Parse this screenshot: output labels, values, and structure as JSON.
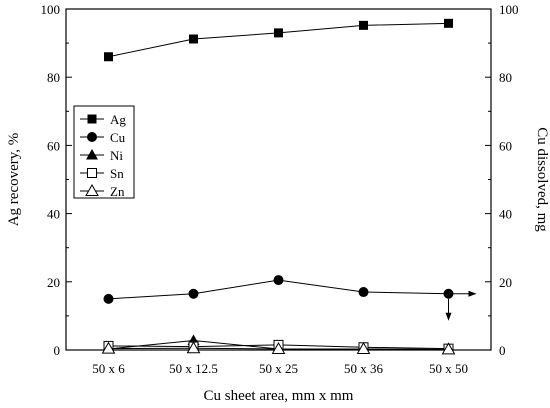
{
  "chart_data": {
    "type": "line",
    "xlabel": "Cu sheet area, mm x mm",
    "ylabel_left": "Ag recovery, %",
    "ylabel_right": "Cu dissolved, mg",
    "categories": [
      "50 x 6",
      "50 x 12.5",
      "50 x 25",
      "50 x 36",
      "50 x 50"
    ],
    "ylim_left": [
      0,
      100
    ],
    "ylim_right": [
      0,
      100
    ],
    "yticks_left": [
      "0",
      "20",
      "40",
      "60",
      "80",
      "100"
    ],
    "yticks_right": [
      "0",
      "20",
      "40",
      "60",
      "80",
      "100"
    ],
    "grid": false,
    "legend_position": "left-middle",
    "series": [
      {
        "name": "Ag",
        "marker": "square-filled",
        "axis": "left",
        "values": [
          86,
          91.2,
          93,
          95.2,
          95.8
        ]
      },
      {
        "name": "Cu",
        "marker": "circle-filled",
        "axis": "left",
        "values": [
          15,
          16.5,
          20.5,
          17,
          16.5
        ]
      },
      {
        "name": "Ni",
        "marker": "triangle-filled",
        "axis": "left",
        "values": [
          0.3,
          2.8,
          0.3,
          0.2,
          0.2
        ]
      },
      {
        "name": "Sn",
        "marker": "square-open",
        "axis": "left",
        "values": [
          1.2,
          1.0,
          1.5,
          0.8,
          0.4
        ]
      },
      {
        "name": "Zn",
        "marker": "triangle-open",
        "axis": "left",
        "values": [
          0.4,
          0.5,
          0.3,
          0.3,
          0.2
        ]
      }
    ],
    "arrows": [
      {
        "series": "Cu",
        "direction": "right"
      },
      {
        "series": "Cu",
        "direction": "down"
      }
    ]
  }
}
